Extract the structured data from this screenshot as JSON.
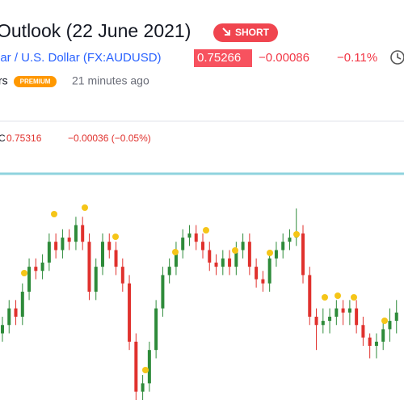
{
  "header": {
    "title": "Outlook (22 June 2021)",
    "badge": "SHORT",
    "symbol": "lar / U.S. Dollar (FX:AUDUSD)",
    "price": "0.75266",
    "change": "−0.00086",
    "change_pct": "−0.11%",
    "author": "rs",
    "premium": "PREMIUM",
    "time": "21 minutes ago"
  },
  "chart_data": {
    "type": "candlestick",
    "legend": {
      "label": "C",
      "close": "0.75316",
      "change": "−0.00036 (−0.05%)"
    },
    "up_color": "#2e8b3a",
    "down_color": "#e0312d",
    "open": [
      0.7505,
      0.751,
      0.752,
      0.7515,
      0.753,
      0.7545,
      0.75425,
      0.75475,
      0.756,
      0.7555,
      0.75625,
      0.756,
      0.757,
      0.756,
      0.753,
      0.7545,
      0.756,
      0.7555,
      0.7545,
      0.7535,
      0.75,
      0.747,
      0.7475,
      0.7495,
      0.752,
      0.754,
      0.7545,
      0.7555,
      0.75625,
      0.7565,
      0.756,
      0.7555,
      0.75475,
      0.7545,
      0.755,
      0.7545,
      0.7555,
      0.756,
      0.7545,
      0.75375,
      0.7535,
      0.755,
      0.7555,
      0.756,
      0.75625,
      0.7565,
      0.754,
      0.7515,
      0.751,
      0.75125,
      0.7515,
      0.752,
      0.75175,
      0.752,
      0.751,
      0.75025,
      0.74975,
      0.75,
      0.75075,
      0.75125
    ],
    "high": [
      0.7515,
      0.7525,
      0.7525,
      0.7535,
      0.755,
      0.755,
      0.75525,
      0.7565,
      0.7565,
      0.75675,
      0.75675,
      0.7575,
      0.7575,
      0.7565,
      0.755,
      0.7565,
      0.7565,
      0.756,
      0.755,
      0.754,
      0.7505,
      0.748,
      0.75,
      0.7525,
      0.7545,
      0.755,
      0.756,
      0.75675,
      0.757,
      0.757,
      0.7565,
      0.756,
      0.75525,
      0.7555,
      0.7555,
      0.756,
      0.7565,
      0.7565,
      0.755,
      0.75425,
      0.7555,
      0.756,
      0.7565,
      0.75675,
      0.758,
      0.757,
      0.7545,
      0.752,
      0.752,
      0.752,
      0.7525,
      0.7525,
      0.7525,
      0.7525,
      0.7515,
      0.7505,
      0.7505,
      0.75125,
      0.752,
      0.7525
    ],
    "low": [
      0.75,
      0.7505,
      0.751,
      0.751,
      0.7525,
      0.75375,
      0.75375,
      0.75425,
      0.755,
      0.755,
      0.7555,
      0.7555,
      0.7555,
      0.7525,
      0.7525,
      0.754,
      0.755,
      0.754,
      0.753,
      0.7495,
      0.7465,
      0.7465,
      0.747,
      0.749,
      0.7515,
      0.7535,
      0.754,
      0.755,
      0.75575,
      0.7555,
      0.755,
      0.75425,
      0.754,
      0.754,
      0.754,
      0.754,
      0.755,
      0.754,
      0.75325,
      0.753,
      0.753,
      0.7545,
      0.755,
      0.7555,
      0.75575,
      0.7535,
      0.751,
      0.7495,
      0.7505,
      0.7505,
      0.751,
      0.751,
      0.751,
      0.7505,
      0.74975,
      0.749,
      0.749,
      0.7495,
      0.75,
      0.7505
    ],
    "close": [
      0.751,
      0.752,
      0.7515,
      0.753,
      0.7545,
      0.75425,
      0.75475,
      0.756,
      0.7555,
      0.75625,
      0.756,
      0.757,
      0.756,
      0.753,
      0.7545,
      0.756,
      0.7555,
      0.7545,
      0.7535,
      0.75,
      0.747,
      0.7475,
      0.7495,
      0.752,
      0.754,
      0.7545,
      0.7555,
      0.75625,
      0.7565,
      0.756,
      0.7555,
      0.75475,
      0.7545,
      0.755,
      0.7545,
      0.7555,
      0.756,
      0.7545,
      0.75375,
      0.7535,
      0.755,
      0.7555,
      0.756,
      0.75625,
      0.7565,
      0.754,
      0.7515,
      0.751,
      0.75125,
      0.7515,
      0.752,
      0.75175,
      0.752,
      0.751,
      0.75025,
      0.74975,
      0.75,
      0.75075,
      0.75125,
      0.75175
    ]
  }
}
